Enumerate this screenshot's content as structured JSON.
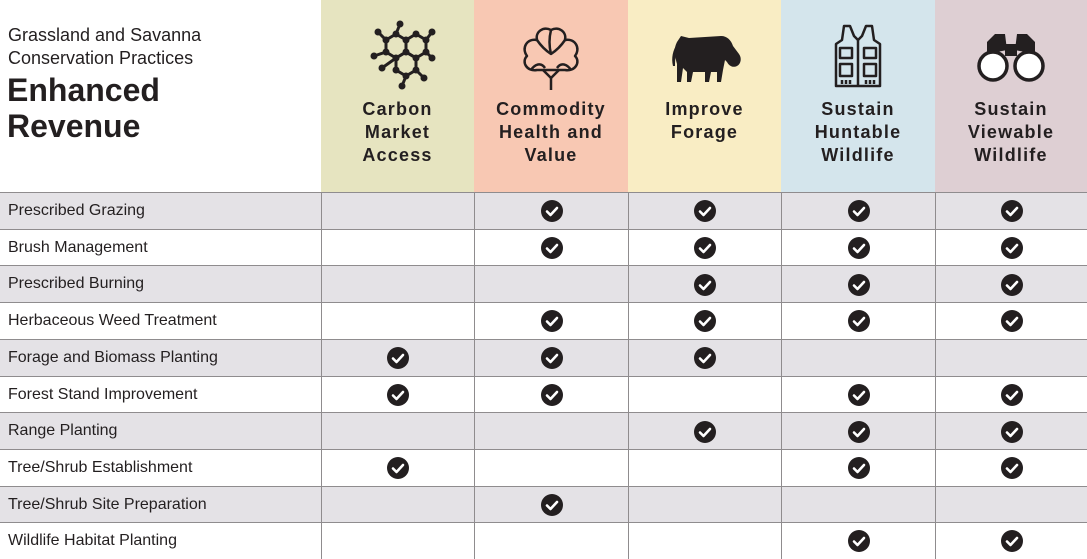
{
  "header": {
    "subtitle": "Grassland and Savanna\nConservation Practices",
    "title": "Enhanced\nRevenue"
  },
  "colors": {
    "carbon": "#e6e4c0",
    "commodity": "#f8c8b3",
    "forage": "#f9edc4",
    "huntable": "#d4e5ec",
    "viewable": "#decfd3",
    "row_shade": "#e4e2e6",
    "check": "#231f20"
  },
  "columns": [
    {
      "key": "carbon",
      "label": "Carbon\nMarket\nAccess",
      "icon": "molecule-icon"
    },
    {
      "key": "commodity",
      "label": "Commodity\nHealth and\nValue",
      "icon": "cotton-boll-icon"
    },
    {
      "key": "forage",
      "label": "Improve\nForage",
      "icon": "grazing-cow-icon"
    },
    {
      "key": "huntable",
      "label": "Sustain\nHuntable\nWildlife",
      "icon": "hunting-vest-icon"
    },
    {
      "key": "viewable",
      "label": "Sustain\nViewable\nWildlife",
      "icon": "binoculars-icon"
    }
  ],
  "rows": [
    {
      "name": "Prescribed Grazing",
      "checks": [
        false,
        true,
        true,
        true,
        true
      ]
    },
    {
      "name": "Brush Management",
      "checks": [
        false,
        true,
        true,
        true,
        true
      ]
    },
    {
      "name": "Prescribed Burning",
      "checks": [
        false,
        false,
        true,
        true,
        true
      ]
    },
    {
      "name": "Herbaceous Weed Treatment",
      "checks": [
        false,
        true,
        true,
        true,
        true
      ]
    },
    {
      "name": "Forage and Biomass Planting",
      "checks": [
        true,
        true,
        true,
        false,
        false
      ]
    },
    {
      "name": "Forest Stand Improvement",
      "checks": [
        true,
        true,
        false,
        true,
        true
      ]
    },
    {
      "name": "Range Planting",
      "checks": [
        false,
        false,
        true,
        true,
        true
      ]
    },
    {
      "name": "Tree/Shrub Establishment",
      "checks": [
        true,
        false,
        false,
        true,
        true
      ]
    },
    {
      "name": "Tree/Shrub Site Preparation",
      "checks": [
        false,
        true,
        false,
        false,
        false
      ]
    },
    {
      "name": "Wildlife Habitat Planting",
      "checks": [
        false,
        false,
        false,
        true,
        true
      ]
    }
  ]
}
